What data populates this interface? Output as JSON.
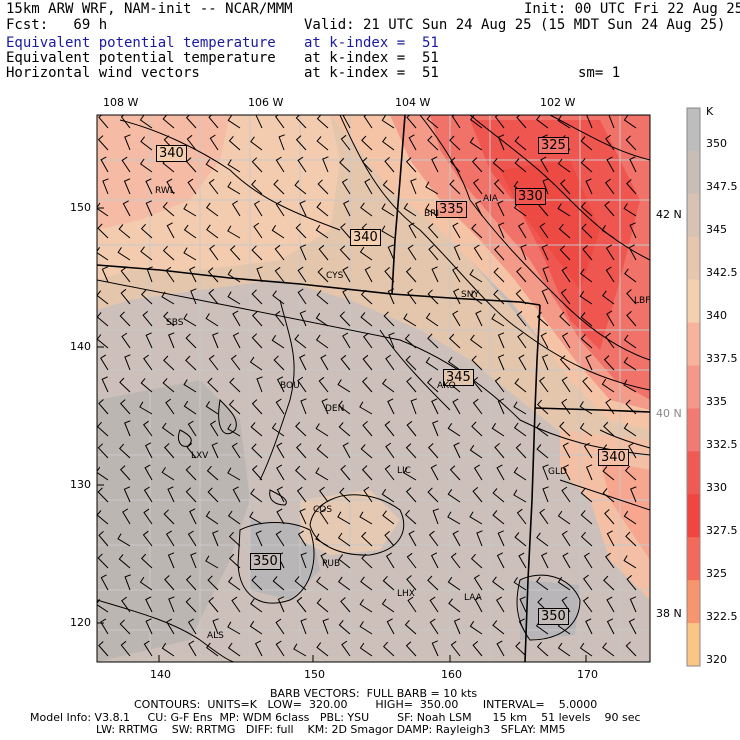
{
  "header": {
    "model_line": "15km ARW WRF, NAM-init -- NCAR/MMM",
    "init_line": "Init: 00 UTC Fri 22 Aug 25",
    "fcst_line": "Fcst:   69 h",
    "valid_line": "Valid: 21 UTC Sun 24 Aug 25 (15 MDT Sun 24 Aug 25)",
    "field1_name": "Equivalent potential temperature",
    "field1_level": "at k-index =  51",
    "field2_name": "Equivalent potential temperature",
    "field2_level": "at k-index =  51",
    "field3_name": "Horizontal wind vectors",
    "field3_level": "at k-index =  51",
    "smooth": "sm= 1"
  },
  "colors": {
    "field1_blue": "#1a1aa0",
    "contour": "#000000",
    "state_border": "#000000",
    "county_border": "#c8c8c8"
  },
  "axes": {
    "top_lon": [
      "108 W",
      "106 W",
      "104 W",
      "102 W"
    ],
    "right_lat": [
      "42 N",
      "40 N",
      "38 N"
    ],
    "left_y": [
      "150",
      "140",
      "130",
      "120"
    ],
    "bottom_x": [
      "140",
      "150",
      "160",
      "170"
    ]
  },
  "colorbar": {
    "unit": "K",
    "levels": [
      "350",
      "347.5",
      "345",
      "342.5",
      "340",
      "337.5",
      "335",
      "332.5",
      "330",
      "327.5",
      "325",
      "322.5",
      "320"
    ],
    "colors": [
      "#bdbdbd",
      "#c9bdb8",
      "#d8c2b4",
      "#e6c7ae",
      "#f5d0b0",
      "#f7b39c",
      "#f6978a",
      "#f37a72",
      "#f05a52",
      "#f0463f",
      "#f46a5a",
      "#f7956e",
      "#fbc585"
    ]
  },
  "contour_labels": [
    "340",
    "325",
    "330",
    "335",
    "340",
    "345",
    "340",
    "350",
    "350"
  ],
  "stations": [
    "RWL",
    "BRI",
    "AIA",
    "CYS",
    "SNY",
    "LBF",
    "SBS",
    "BOU",
    "DEN",
    "AKO",
    "LXV",
    "LIC",
    "GLD",
    "COS",
    "PUB",
    "LHX",
    "LAA",
    "ALS"
  ],
  "footer": {
    "barbs": "BARB VECTORS:  FULL BARB = 10 kts",
    "contours": "CONTOURS:  UNITS=K   LOW=  320.00        HIGH=  350.00       INTERVAL=    5.0000",
    "model_info": "Model Info: V3.8.1     CU: G-F Ens  MP: WDM 6class   PBL: YSU        SF: Noah LSM      15 km    51 levels    90 sec",
    "model_info2": "LW: RRTMG    SW: RRTMG   DIFF: full    KM: 2D Smagor DAMP: Rayleigh3   SFLAY: MM5"
  }
}
